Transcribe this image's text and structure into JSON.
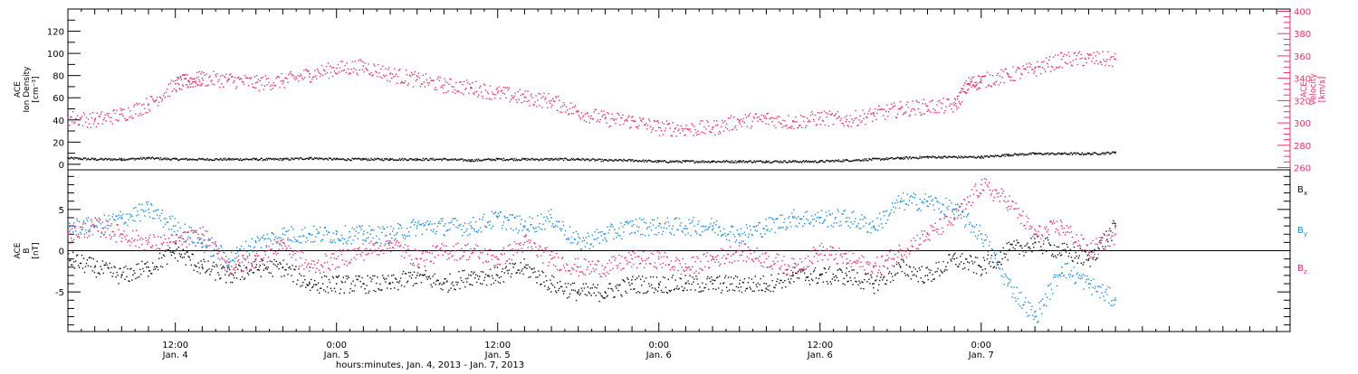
{
  "colors": {
    "black": "#111111",
    "pink": "#e8336a",
    "blue": "#1a8ce0",
    "axis": "#000000"
  },
  "chart_data": [
    {
      "type": "scatter",
      "panel": "top",
      "ylabel_lines": [
        "ACE",
        "Ion Density",
        "[cm⁻³]"
      ],
      "y2label_lines": [
        "ACE",
        "Velocity",
        "[km/s]"
      ],
      "ylim": [
        -5,
        140
      ],
      "y_ticks": [
        0,
        20,
        40,
        60,
        80,
        100,
        120
      ],
      "y2lim": [
        258,
        402
      ],
      "y2_ticks": [
        260,
        280,
        300,
        320,
        340,
        360,
        380,
        400
      ],
      "y2_color": "#e8336a",
      "series": [
        {
          "axis": "left",
          "color": "#111111",
          "x": [
            0,
            2,
            4,
            6,
            8,
            10,
            12,
            14,
            16,
            18,
            20,
            22,
            24,
            26,
            28,
            30,
            32,
            34,
            36,
            38,
            40,
            42,
            44,
            46,
            48,
            50,
            52,
            54,
            56,
            58,
            60,
            62,
            64,
            66,
            68,
            70,
            72,
            74,
            76,
            78
          ],
          "y": [
            6,
            5,
            5,
            6,
            5,
            5,
            5,
            5,
            5,
            6,
            5,
            5,
            5,
            5,
            5,
            4,
            5,
            5,
            5,
            5,
            4,
            4,
            3,
            3,
            3,
            3,
            3,
            3,
            3,
            4,
            5,
            6,
            7,
            7,
            7,
            9,
            10,
            10,
            10,
            11
          ]
        },
        {
          "axis": "right",
          "color": "#e8336a",
          "x": [
            0,
            2,
            4,
            6,
            8,
            9,
            10,
            12,
            14,
            16,
            18,
            20,
            22,
            24,
            26,
            28,
            30,
            32,
            34,
            36,
            38,
            40,
            42,
            44,
            46,
            48,
            50,
            52,
            54,
            56,
            58,
            60,
            62,
            64,
            66,
            67,
            68,
            70,
            72,
            74,
            76,
            78
          ],
          "y": [
            305,
            303,
            308,
            317,
            335,
            338,
            340,
            339,
            336,
            338,
            344,
            349,
            351,
            344,
            339,
            334,
            332,
            327,
            323,
            320,
            310,
            304,
            302,
            296,
            295,
            296,
            302,
            304,
            301,
            305,
            303,
            308,
            313,
            315,
            316,
            335,
            338,
            343,
            349,
            357,
            358,
            357
          ]
        }
      ]
    },
    {
      "type": "scatter",
      "panel": "bottom",
      "ylabel_lines": [
        "ACE",
        "B",
        "[nT]"
      ],
      "ylim": [
        -9.8,
        9.8
      ],
      "y_ticks": [
        -5,
        0,
        5
      ],
      "legend": [
        "Bx",
        "By",
        "Bz"
      ],
      "legend_position": "right",
      "series": [
        {
          "name": "Bx",
          "color": "#111111",
          "x": [
            0,
            2,
            4,
            6,
            8,
            10,
            12,
            14,
            16,
            18,
            20,
            22,
            24,
            26,
            28,
            30,
            32,
            34,
            36,
            38,
            40,
            42,
            44,
            46,
            48,
            50,
            52,
            54,
            56,
            58,
            60,
            62,
            64,
            66,
            68,
            70,
            72,
            74,
            76,
            78
          ],
          "y": [
            -1,
            -2,
            -3,
            -2,
            0,
            -2,
            -3,
            -2,
            -2,
            -4,
            -4,
            -4,
            -4,
            -3,
            -4,
            -3,
            -3,
            -2,
            -4,
            -5,
            -5,
            -4,
            -4,
            -4,
            -4,
            -4,
            -4,
            -3,
            -3,
            -3,
            -4,
            -2,
            -3,
            -1,
            -2,
            0,
            1,
            0,
            -1,
            3
          ]
        },
        {
          "name": "By",
          "color": "#1a8ce0",
          "x": [
            0,
            2,
            4,
            6,
            8,
            10,
            12,
            14,
            16,
            18,
            20,
            22,
            24,
            26,
            28,
            30,
            32,
            34,
            36,
            38,
            40,
            42,
            44,
            46,
            48,
            50,
            52,
            54,
            56,
            58,
            60,
            62,
            64,
            66,
            68,
            70,
            72,
            74,
            76,
            78
          ],
          "y": [
            3,
            3,
            4,
            5,
            3,
            1,
            -1,
            1,
            2,
            2,
            2,
            2,
            2,
            3,
            3,
            3,
            4,
            3,
            4,
            1,
            2,
            3,
            3,
            3,
            3,
            2,
            3,
            4,
            4,
            4,
            3,
            6,
            6,
            5,
            2,
            -4,
            -8,
            -2,
            -4,
            -6
          ]
        },
        {
          "name": "Bz",
          "color": "#e8336a",
          "x": [
            0,
            2,
            4,
            6,
            8,
            10,
            12,
            14,
            16,
            18,
            20,
            22,
            24,
            26,
            28,
            30,
            32,
            34,
            36,
            38,
            40,
            42,
            44,
            46,
            48,
            50,
            52,
            54,
            56,
            58,
            60,
            62,
            64,
            66,
            68,
            70,
            72,
            74,
            76,
            78
          ],
          "y": [
            2,
            3,
            2,
            1,
            1,
            2,
            -2,
            -1,
            1,
            -2,
            -1,
            0,
            1,
            -1,
            0,
            0,
            -1,
            1,
            -1,
            -2,
            -2,
            -1,
            -1,
            -2,
            -1,
            0,
            -1,
            -2,
            0,
            -1,
            -2,
            0,
            2,
            4,
            8,
            6,
            2,
            3,
            0,
            2
          ]
        }
      ]
    }
  ],
  "x_axis": {
    "xlim": [
      0,
      91
    ],
    "ticks": [
      {
        "x": 8,
        "time": "12:00",
        "date": "Jan. 4"
      },
      {
        "x": 20,
        "time": "0:00",
        "date": "Jan. 5"
      },
      {
        "x": 32,
        "time": "12:00",
        "date": "Jan. 5"
      },
      {
        "x": 44,
        "time": "0:00",
        "date": "Jan. 6"
      },
      {
        "x": 56,
        "time": "12:00",
        "date": "Jan. 6"
      },
      {
        "x": 68,
        "time": "0:00",
        "date": "Jan. 7"
      }
    ],
    "xlabel": "hours:minutes, Jan.  4, 2013 - Jan.  7, 2013"
  },
  "legend_labels": {
    "bx": "B",
    "bx_sub": "x",
    "by": "B",
    "by_sub": "y",
    "bz": "B",
    "bz_sub": "z"
  }
}
